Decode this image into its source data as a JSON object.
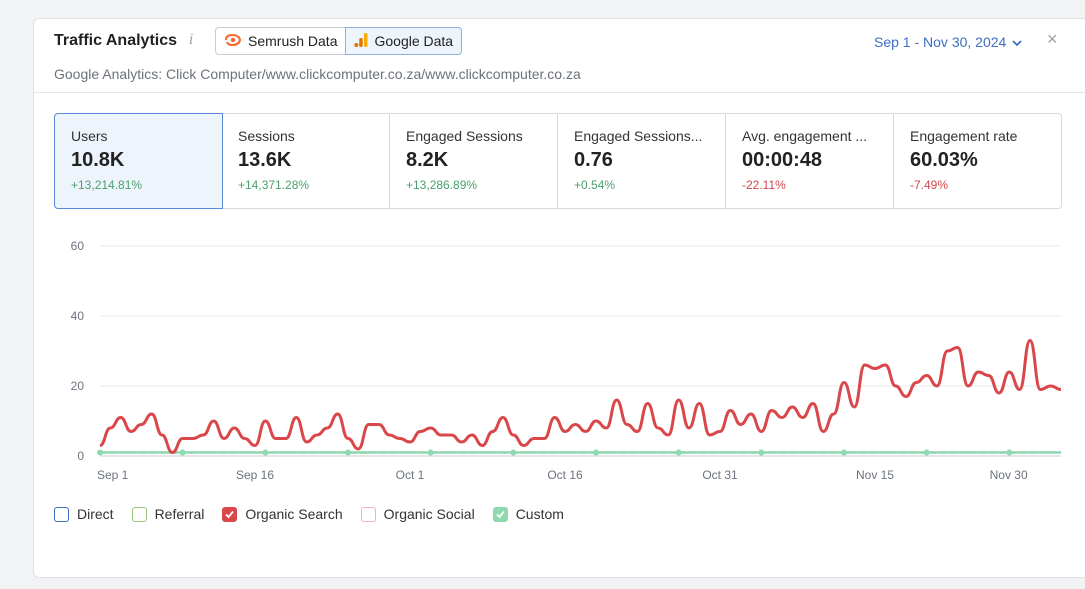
{
  "header": {
    "title": "Traffic Analytics",
    "info_icon": "i",
    "source_semrush": "Semrush Data",
    "source_google": "Google Data",
    "subtitle": "Google Analytics: Click Computer/www.clickcomputer.co.za/www.clickcomputer.co.za",
    "date_range": "Sep 1 - Nov 30, 2024",
    "close": "×"
  },
  "metrics": [
    {
      "label": "Users",
      "value": "10.8K",
      "delta": "+13,214.81%",
      "trend": "pos",
      "active": true
    },
    {
      "label": "Sessions",
      "value": "13.6K",
      "delta": "+14,371.28%",
      "trend": "pos"
    },
    {
      "label": "Engaged Sessions",
      "value": "8.2K",
      "delta": "+13,286.89%",
      "trend": "pos"
    },
    {
      "label": "Engaged Sessions...",
      "value": "0.76",
      "delta": "+0.54%",
      "trend": "pos"
    },
    {
      "label": "Avg. engagement ...",
      "value": "00:00:48",
      "delta": "-22.11%",
      "trend": "neg"
    },
    {
      "label": "Engagement rate",
      "value": "60.03%",
      "delta": "-7.49%",
      "trend": "neg"
    }
  ],
  "chart_data": {
    "type": "line",
    "ylim": [
      0,
      60
    ],
    "yticks": [
      "0",
      "20",
      "40",
      "60"
    ],
    "xtick_labels": [
      "Sep 1",
      "Sep 16",
      "Oct 1",
      "Oct 16",
      "Oct 31",
      "Nov 15",
      "Nov 30"
    ],
    "xtick_index": [
      0,
      15,
      30,
      45,
      60,
      75,
      89
    ],
    "grid": true,
    "series": [
      {
        "name": "Organic Search",
        "color": "#d9474b",
        "values": [
          3,
          8,
          11,
          7,
          9,
          12,
          6,
          1,
          5,
          5,
          6,
          10,
          5,
          8,
          5,
          3,
          10,
          5,
          5,
          11,
          4,
          6,
          8,
          12,
          5,
          2,
          9,
          9,
          6,
          5,
          4,
          7,
          8,
          6,
          6,
          4,
          6,
          3,
          7,
          11,
          6,
          3,
          5,
          5,
          11,
          7,
          9,
          7,
          10,
          8,
          16,
          9,
          7,
          15,
          8,
          6,
          16,
          8,
          15,
          6,
          7,
          13,
          9,
          12,
          7,
          13,
          11,
          14,
          11,
          15,
          7,
          12,
          21,
          14,
          26,
          25,
          26,
          20,
          17,
          21,
          23,
          20,
          30,
          31,
          20,
          24,
          23,
          18,
          24,
          19,
          33,
          19,
          20,
          19
        ]
      },
      {
        "name": "Custom",
        "color": "#8fd9b0",
        "values": [
          1,
          1,
          1,
          1,
          1,
          1,
          1,
          1,
          1,
          1,
          1,
          1,
          1,
          1,
          1,
          1,
          1,
          1,
          1,
          1,
          1,
          1,
          1,
          1,
          1,
          1,
          1,
          1,
          1,
          1,
          1,
          1,
          1,
          1,
          1,
          1,
          1,
          1,
          1,
          1,
          1,
          1,
          1,
          1,
          1,
          1,
          1,
          1,
          1,
          1,
          1,
          1,
          1,
          1,
          1,
          1,
          1,
          1,
          1,
          1,
          1,
          1,
          1,
          1,
          1,
          1,
          1,
          1,
          1,
          1,
          1,
          1,
          1,
          1,
          1,
          1,
          1,
          1,
          1,
          1,
          1,
          1,
          1,
          1,
          1,
          1,
          1,
          1,
          1,
          1,
          1,
          1,
          1,
          1
        ]
      },
      {
        "name": "Direct",
        "color": "#c4c6cc",
        "values": [
          1,
          1,
          1,
          1,
          1,
          1,
          1,
          1,
          1,
          1,
          1,
          1,
          1,
          1,
          1,
          1,
          1,
          1,
          1,
          1,
          1,
          1,
          1,
          1,
          1,
          1,
          1,
          1,
          1,
          1,
          1,
          1,
          1,
          1,
          1,
          1,
          1,
          1,
          1,
          1,
          1,
          1,
          1,
          1,
          1,
          1,
          1,
          1,
          1,
          1,
          1,
          1,
          1,
          1,
          1,
          1,
          1,
          1,
          1,
          1,
          1,
          1,
          1,
          1,
          1,
          1,
          1,
          1,
          1,
          1,
          1,
          1,
          1,
          1,
          1,
          1,
          1,
          1,
          1,
          1,
          1,
          1,
          1,
          1,
          1,
          1,
          1,
          1,
          1,
          1,
          1,
          1,
          1,
          1
        ]
      }
    ]
  },
  "legend": [
    {
      "label": "Direct",
      "color": "#3d6fc4",
      "checked": false
    },
    {
      "label": "Referral",
      "color": "#9cc77a",
      "checked": false
    },
    {
      "label": "Organic Search",
      "color": "#d9474b",
      "checked": true
    },
    {
      "label": "Organic Social",
      "color": "#e8b7bd",
      "checked": false
    },
    {
      "label": "Custom",
      "color": "#8fd9b0",
      "checked": true
    }
  ]
}
